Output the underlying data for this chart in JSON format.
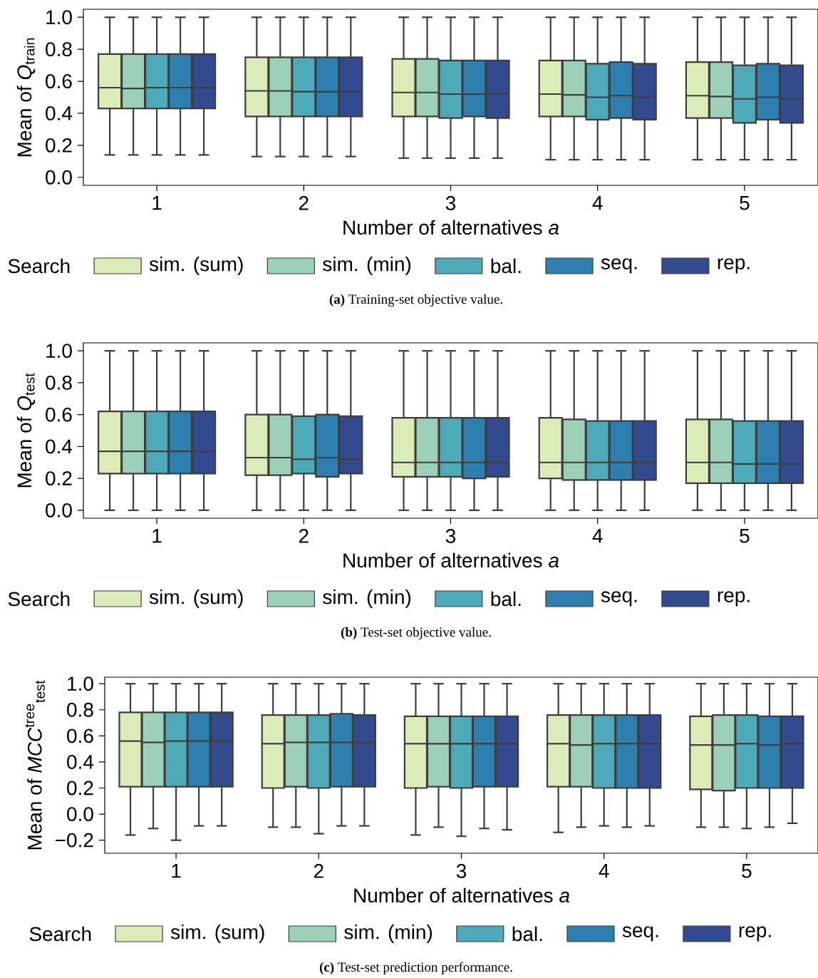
{
  "chart_data": [
    {
      "type": "box",
      "xlabel": "Number of alternatives *a*",
      "ylabel": "Mean of *Q*$_{train}$",
      "legend_title": "Search",
      "legend": "bottom",
      "categories": [
        "1",
        "2",
        "3",
        "4",
        "5"
      ],
      "ylim": [
        -0.05,
        1.05
      ],
      "yticks": [
        {
          "value": 0,
          "label": "0.0"
        },
        {
          "value": 0.2,
          "label": "0.2"
        },
        {
          "value": 0.4,
          "label": "0.4"
        },
        {
          "value": 0.6,
          "label": "0.6"
        },
        {
          "value": 0.8,
          "label": "0.8"
        },
        {
          "value": 1,
          "label": "1.0"
        }
      ],
      "annotations": [
        "**(a)** Training-set objective value."
      ],
      "series": [
        {
          "name": "sim. (sum)",
          "color": "#dcecb9",
          "boxes": [
            {
              "low": 0.14,
              "q1": 0.43,
              "median": 0.56,
              "q3": 0.77,
              "high": 1.0
            },
            {
              "low": 0.13,
              "q1": 0.38,
              "median": 0.54,
              "q3": 0.75,
              "high": 1.0
            },
            {
              "low": 0.12,
              "q1": 0.38,
              "median": 0.53,
              "q3": 0.74,
              "high": 1.0
            },
            {
              "low": 0.11,
              "q1": 0.38,
              "median": 0.52,
              "q3": 0.73,
              "high": 1.0
            },
            {
              "low": 0.11,
              "q1": 0.37,
              "median": 0.51,
              "q3": 0.72,
              "high": 1.0
            }
          ]
        },
        {
          "name": "sim. (min)",
          "color": "#9dd0b9",
          "boxes": [
            {
              "low": 0.14,
              "q1": 0.43,
              "median": 0.555,
              "q3": 0.77,
              "high": 1.0
            },
            {
              "low": 0.13,
              "q1": 0.38,
              "median": 0.54,
              "q3": 0.75,
              "high": 1.0
            },
            {
              "low": 0.12,
              "q1": 0.38,
              "median": 0.53,
              "q3": 0.74,
              "high": 1.0
            },
            {
              "low": 0.11,
              "q1": 0.38,
              "median": 0.515,
              "q3": 0.73,
              "high": 1.0
            },
            {
              "low": 0.11,
              "q1": 0.37,
              "median": 0.505,
              "q3": 0.72,
              "high": 1.0
            }
          ]
        },
        {
          "name": "bal.",
          "color": "#4eaab8",
          "boxes": [
            {
              "low": 0.14,
              "q1": 0.43,
              "median": 0.56,
              "q3": 0.77,
              "high": 1.0
            },
            {
              "low": 0.13,
              "q1": 0.38,
              "median": 0.535,
              "q3": 0.75,
              "high": 1.0
            },
            {
              "low": 0.12,
              "q1": 0.37,
              "median": 0.52,
              "q3": 0.73,
              "high": 1.0
            },
            {
              "low": 0.11,
              "q1": 0.36,
              "median": 0.5,
              "q3": 0.71,
              "high": 1.0
            },
            {
              "low": 0.11,
              "q1": 0.34,
              "median": 0.49,
              "q3": 0.7,
              "high": 1.0
            }
          ]
        },
        {
          "name": "seq.",
          "color": "#2f7eb0",
          "boxes": [
            {
              "low": 0.14,
              "q1": 0.43,
              "median": 0.56,
              "q3": 0.77,
              "high": 1.0
            },
            {
              "low": 0.13,
              "q1": 0.38,
              "median": 0.535,
              "q3": 0.75,
              "high": 1.0
            },
            {
              "low": 0.12,
              "q1": 0.38,
              "median": 0.52,
              "q3": 0.73,
              "high": 1.0
            },
            {
              "low": 0.11,
              "q1": 0.37,
              "median": 0.51,
              "q3": 0.72,
              "high": 1.0
            },
            {
              "low": 0.11,
              "q1": 0.36,
              "median": 0.5,
              "q3": 0.71,
              "high": 1.0
            }
          ]
        },
        {
          "name": "rep.",
          "color": "#344a8f",
          "boxes": [
            {
              "low": 0.14,
              "q1": 0.43,
              "median": 0.56,
              "q3": 0.77,
              "high": 1.0
            },
            {
              "low": 0.13,
              "q1": 0.38,
              "median": 0.535,
              "q3": 0.75,
              "high": 1.0
            },
            {
              "low": 0.12,
              "q1": 0.37,
              "median": 0.52,
              "q3": 0.73,
              "high": 1.0
            },
            {
              "low": 0.11,
              "q1": 0.36,
              "median": 0.5,
              "q3": 0.71,
              "high": 1.0
            },
            {
              "low": 0.11,
              "q1": 0.34,
              "median": 0.49,
              "q3": 0.7,
              "high": 1.0
            }
          ]
        }
      ]
    },
    {
      "type": "box",
      "xlabel": "Number of alternatives *a*",
      "ylabel": "Mean of *Q*$_{test}$",
      "legend_title": "Search",
      "legend": "bottom",
      "categories": [
        "1",
        "2",
        "3",
        "4",
        "5"
      ],
      "ylim": [
        -0.05,
        1.05
      ],
      "yticks": [
        {
          "value": 0,
          "label": "0.0"
        },
        {
          "value": 0.2,
          "label": "0.2"
        },
        {
          "value": 0.4,
          "label": "0.4"
        },
        {
          "value": 0.6,
          "label": "0.6"
        },
        {
          "value": 0.8,
          "label": "0.8"
        },
        {
          "value": 1,
          "label": "1.0"
        }
      ],
      "annotations": [
        "**(b)** Test-set objective value."
      ],
      "series": [
        {
          "name": "sim. (sum)",
          "color": "#dcecb9",
          "boxes": [
            {
              "low": 0.0,
              "q1": 0.23,
              "median": 0.37,
              "q3": 0.62,
              "high": 1.0
            },
            {
              "low": 0.0,
              "q1": 0.22,
              "median": 0.33,
              "q3": 0.6,
              "high": 1.0
            },
            {
              "low": 0.0,
              "q1": 0.21,
              "median": 0.3,
              "q3": 0.58,
              "high": 1.0
            },
            {
              "low": 0.0,
              "q1": 0.2,
              "median": 0.3,
              "q3": 0.58,
              "high": 1.0
            },
            {
              "low": 0.0,
              "q1": 0.17,
              "median": 0.3,
              "q3": 0.57,
              "high": 1.0
            }
          ]
        },
        {
          "name": "sim. (min)",
          "color": "#9dd0b9",
          "boxes": [
            {
              "low": 0.0,
              "q1": 0.23,
              "median": 0.37,
              "q3": 0.62,
              "high": 1.0
            },
            {
              "low": 0.0,
              "q1": 0.22,
              "median": 0.33,
              "q3": 0.6,
              "high": 1.0
            },
            {
              "low": 0.0,
              "q1": 0.21,
              "median": 0.3,
              "q3": 0.58,
              "high": 1.0
            },
            {
              "low": 0.0,
              "q1": 0.19,
              "median": 0.3,
              "q3": 0.57,
              "high": 1.0
            },
            {
              "low": 0.0,
              "q1": 0.17,
              "median": 0.3,
              "q3": 0.57,
              "high": 1.0
            }
          ]
        },
        {
          "name": "bal.",
          "color": "#4eaab8",
          "boxes": [
            {
              "low": 0.0,
              "q1": 0.23,
              "median": 0.37,
              "q3": 0.62,
              "high": 1.0
            },
            {
              "low": 0.0,
              "q1": 0.23,
              "median": 0.32,
              "q3": 0.59,
              "high": 1.0
            },
            {
              "low": 0.0,
              "q1": 0.21,
              "median": 0.3,
              "q3": 0.58,
              "high": 1.0
            },
            {
              "low": 0.0,
              "q1": 0.19,
              "median": 0.3,
              "q3": 0.56,
              "high": 1.0
            },
            {
              "low": 0.0,
              "q1": 0.17,
              "median": 0.29,
              "q3": 0.56,
              "high": 1.0
            }
          ]
        },
        {
          "name": "seq.",
          "color": "#2f7eb0",
          "boxes": [
            {
              "low": 0.0,
              "q1": 0.23,
              "median": 0.37,
              "q3": 0.62,
              "high": 1.0
            },
            {
              "low": 0.0,
              "q1": 0.21,
              "median": 0.33,
              "q3": 0.6,
              "high": 1.0
            },
            {
              "low": 0.0,
              "q1": 0.2,
              "median": 0.3,
              "q3": 0.58,
              "high": 1.0
            },
            {
              "low": 0.0,
              "q1": 0.19,
              "median": 0.3,
              "q3": 0.56,
              "high": 1.0
            },
            {
              "low": 0.0,
              "q1": 0.17,
              "median": 0.29,
              "q3": 0.56,
              "high": 1.0
            }
          ]
        },
        {
          "name": "rep.",
          "color": "#344a8f",
          "boxes": [
            {
              "low": 0.0,
              "q1": 0.23,
              "median": 0.37,
              "q3": 0.62,
              "high": 1.0
            },
            {
              "low": 0.0,
              "q1": 0.23,
              "median": 0.32,
              "q3": 0.59,
              "high": 1.0
            },
            {
              "low": 0.0,
              "q1": 0.21,
              "median": 0.3,
              "q3": 0.58,
              "high": 1.0
            },
            {
              "low": 0.0,
              "q1": 0.19,
              "median": 0.3,
              "q3": 0.56,
              "high": 1.0
            },
            {
              "low": 0.0,
              "q1": 0.17,
              "median": 0.29,
              "q3": 0.56,
              "high": 1.0
            }
          ]
        }
      ]
    },
    {
      "type": "box",
      "xlabel": "Number of alternatives *a*",
      "ylabel": "Mean of *MCC*$^{tree}$$_{test}$",
      "legend_title": "Search",
      "legend": "bottom",
      "categories": [
        "1",
        "2",
        "3",
        "4",
        "5"
      ],
      "ylim": [
        -0.3,
        1.05
      ],
      "yticks": [
        {
          "value": -0.2,
          "label": "−0.2"
        },
        {
          "value": 0,
          "label": "0.0"
        },
        {
          "value": 0.2,
          "label": "0.2"
        },
        {
          "value": 0.4,
          "label": "0.4"
        },
        {
          "value": 0.6,
          "label": "0.6"
        },
        {
          "value": 0.8,
          "label": "0.8"
        },
        {
          "value": 1,
          "label": "1.0"
        }
      ],
      "annotations": [
        "**(c)** Test-set prediction performance."
      ],
      "series": [
        {
          "name": "sim. (sum)",
          "color": "#dcecb9",
          "boxes": [
            {
              "low": -0.16,
              "q1": 0.21,
              "median": 0.56,
              "q3": 0.78,
              "high": 1.0
            },
            {
              "low": -0.1,
              "q1": 0.2,
              "median": 0.54,
              "q3": 0.76,
              "high": 1.0
            },
            {
              "low": -0.16,
              "q1": 0.2,
              "median": 0.54,
              "q3": 0.75,
              "high": 1.0
            },
            {
              "low": -0.14,
              "q1": 0.21,
              "median": 0.54,
              "q3": 0.76,
              "high": 1.0
            },
            {
              "low": -0.1,
              "q1": 0.19,
              "median": 0.53,
              "q3": 0.75,
              "high": 1.0
            }
          ]
        },
        {
          "name": "sim. (min)",
          "color": "#9dd0b9",
          "boxes": [
            {
              "low": -0.11,
              "q1": 0.21,
              "median": 0.55,
              "q3": 0.78,
              "high": 1.0
            },
            {
              "low": -0.1,
              "q1": 0.21,
              "median": 0.55,
              "q3": 0.76,
              "high": 1.0
            },
            {
              "low": -0.1,
              "q1": 0.21,
              "median": 0.54,
              "q3": 0.75,
              "high": 1.0
            },
            {
              "low": -0.1,
              "q1": 0.21,
              "median": 0.53,
              "q3": 0.76,
              "high": 1.0
            },
            {
              "low": -0.1,
              "q1": 0.18,
              "median": 0.53,
              "q3": 0.76,
              "high": 1.0
            }
          ]
        },
        {
          "name": "bal.",
          "color": "#4eaab8",
          "boxes": [
            {
              "low": -0.2,
              "q1": 0.21,
              "median": 0.56,
              "q3": 0.78,
              "high": 1.0
            },
            {
              "low": -0.15,
              "q1": 0.2,
              "median": 0.55,
              "q3": 0.76,
              "high": 1.0
            },
            {
              "low": -0.17,
              "q1": 0.2,
              "median": 0.54,
              "q3": 0.75,
              "high": 1.0
            },
            {
              "low": -0.09,
              "q1": 0.2,
              "median": 0.54,
              "q3": 0.76,
              "high": 1.0
            },
            {
              "low": -0.11,
              "q1": 0.2,
              "median": 0.54,
              "q3": 0.76,
              "high": 1.0
            }
          ]
        },
        {
          "name": "seq.",
          "color": "#2f7eb0",
          "boxes": [
            {
              "low": -0.09,
              "q1": 0.21,
              "median": 0.56,
              "q3": 0.78,
              "high": 1.0
            },
            {
              "low": -0.09,
              "q1": 0.21,
              "median": 0.55,
              "q3": 0.77,
              "high": 1.0
            },
            {
              "low": -0.11,
              "q1": 0.21,
              "median": 0.54,
              "q3": 0.75,
              "high": 1.0
            },
            {
              "low": -0.1,
              "q1": 0.2,
              "median": 0.54,
              "q3": 0.76,
              "high": 1.0
            },
            {
              "low": -0.1,
              "q1": 0.2,
              "median": 0.53,
              "q3": 0.75,
              "high": 1.0
            }
          ]
        },
        {
          "name": "rep.",
          "color": "#344a8f",
          "boxes": [
            {
              "low": -0.09,
              "q1": 0.21,
              "median": 0.56,
              "q3": 0.78,
              "high": 1.0
            },
            {
              "low": -0.09,
              "q1": 0.21,
              "median": 0.55,
              "q3": 0.76,
              "high": 1.0
            },
            {
              "low": -0.12,
              "q1": 0.21,
              "median": 0.54,
              "q3": 0.75,
              "high": 1.0
            },
            {
              "low": -0.09,
              "q1": 0.2,
              "median": 0.54,
              "q3": 0.76,
              "high": 1.0
            },
            {
              "low": -0.07,
              "q1": 0.2,
              "median": 0.54,
              "q3": 0.75,
              "high": 1.0
            }
          ]
        }
      ]
    }
  ]
}
